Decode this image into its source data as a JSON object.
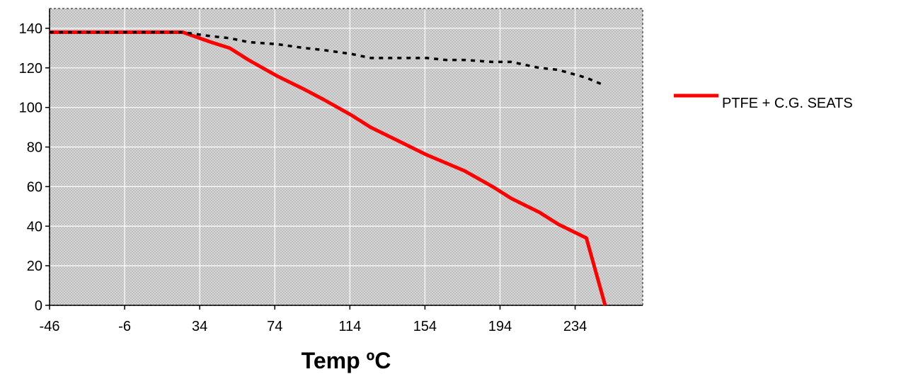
{
  "chart_data": {
    "type": "line",
    "title": "",
    "xlabel": "Temp ºC",
    "ylabel": "",
    "xlim": [
      -46,
      270
    ],
    "ylim": [
      0,
      150
    ],
    "xticks": [
      -46,
      -6,
      34,
      74,
      114,
      154,
      194,
      234
    ],
    "yticks": [
      0,
      20,
      40,
      60,
      80,
      100,
      120,
      140
    ],
    "grid": true,
    "legend_position": "right",
    "series": [
      {
        "name": "PTFE + C.G. SEATS",
        "color": "#ff0000",
        "style": "solid",
        "x": [
          -46,
          25,
          40,
          50,
          60,
          75,
          90,
          100,
          115,
          125,
          140,
          155,
          165,
          175,
          190,
          200,
          215,
          225,
          240,
          250
        ],
        "y": [
          138,
          138,
          133,
          130,
          124,
          116,
          109,
          104,
          96,
          90,
          83,
          76,
          72,
          68,
          60,
          54,
          47,
          41,
          34,
          0
        ]
      },
      {
        "name": "",
        "color": "#000000",
        "style": "dotted",
        "x": [
          -46,
          25,
          40,
          50,
          60,
          75,
          90,
          100,
          115,
          125,
          140,
          155,
          165,
          175,
          190,
          200,
          215,
          225,
          240,
          250
        ],
        "y": [
          138,
          138,
          136,
          135,
          133,
          132,
          130,
          129,
          127,
          125,
          125,
          125,
          124,
          124,
          123,
          123,
          120,
          119,
          115,
          111
        ]
      }
    ]
  }
}
